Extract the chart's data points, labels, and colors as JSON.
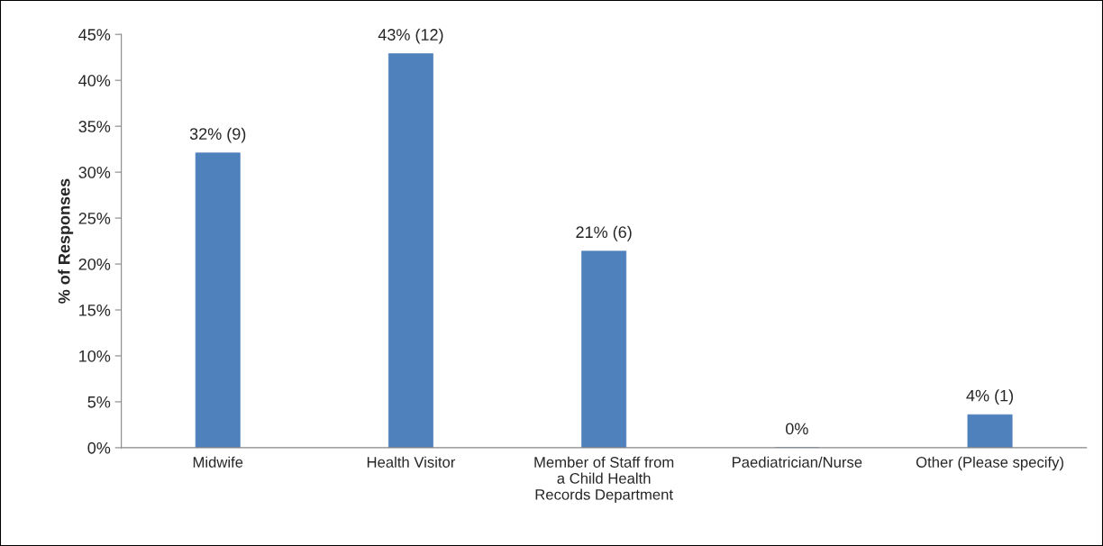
{
  "chart_data": {
    "type": "bar",
    "ylabel": "% of Responses",
    "categories": [
      "Midwife",
      "Health Visitor",
      "Member of Staff from\na Child Health\nRecords Department",
      "Paediatrician/Nurse",
      "Other (Please specify)"
    ],
    "values": [
      32.1,
      42.9,
      21.4,
      0,
      3.6
    ],
    "value_labels": [
      "32% (9)",
      "43% (12)",
      "21% (6)",
      "0%",
      "4% (1)"
    ],
    "color": "#4f81bd",
    "ylim": [
      0,
      45
    ],
    "yticks": [
      {
        "value": 0,
        "label": "0%"
      },
      {
        "value": 5,
        "label": "5%"
      },
      {
        "value": 10,
        "label": "10%"
      },
      {
        "value": 15,
        "label": "15%"
      },
      {
        "value": 20,
        "label": "20%"
      },
      {
        "value": 25,
        "label": "25%"
      },
      {
        "value": 30,
        "label": "30%"
      },
      {
        "value": 35,
        "label": "35%"
      },
      {
        "value": 40,
        "label": "40%"
      },
      {
        "value": 45,
        "label": "45%"
      }
    ],
    "grid": false,
    "legend": false
  }
}
